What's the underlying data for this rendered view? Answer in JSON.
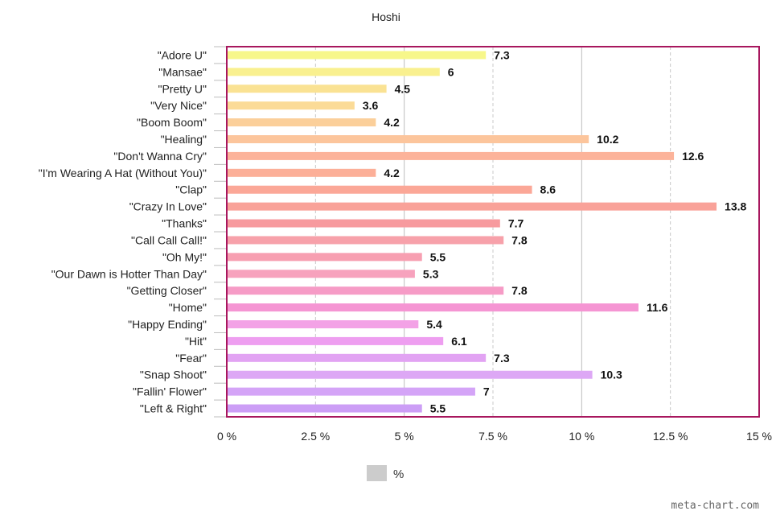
{
  "chart_data": {
    "type": "bar",
    "orientation": "horizontal",
    "title": "Hoshi",
    "categories": [
      "\"Adore U\"",
      "\"Mansae\"",
      "\"Pretty U\"",
      "\"Very Nice\"",
      "\"Boom Boom\"",
      "\"Healing\"",
      "\"Don't Wanna Cry\"",
      "\"I'm Wearing A Hat (Without You)\"",
      "\"Clap\"",
      "\"Crazy In Love\"",
      "\"Thanks\"",
      "\"Call Call Call!\"",
      "\"Oh My!\"",
      "\"Our Dawn is Hotter Than Day\"",
      "\"Getting Closer\"",
      "\"Home\"",
      "\"Happy Ending\"",
      "\"Hit\"",
      "\"Fear\"",
      "\"Snap Shoot\"",
      "\"Fallin' Flower\"",
      "\"Left & Right\""
    ],
    "series": [
      {
        "name": "%",
        "values": [
          7.3,
          6,
          4.5,
          3.6,
          4.2,
          10.2,
          12.6,
          4.2,
          8.6,
          13.8,
          7.7,
          7.8,
          5.5,
          5.3,
          7.8,
          11.6,
          5.4,
          6.1,
          7.3,
          10.3,
          7,
          5.5
        ],
        "value_labels": [
          "7.3",
          "6",
          "4.5",
          "3.6",
          "4.2",
          "10.2",
          "12.6",
          "4.2",
          "8.6",
          "13.8",
          "7.7",
          "7.8",
          "5.5",
          "5.3",
          "7.8",
          "11.6",
          "5.4",
          "6.1",
          "7.3",
          "10.3",
          "7",
          "5.5"
        ]
      }
    ],
    "bar_colors": [
      "#f7f78a",
      "#f9f08f",
      "#fae293",
      "#fbdb97",
      "#fbcf9a",
      "#fcc59c",
      "#fcb39a",
      "#fcaf98",
      "#fba797",
      "#f9a299",
      "#f79a9e",
      "#f7a1aa",
      "#f79fb1",
      "#f7a2bd",
      "#f69bc6",
      "#f595d3",
      "#f3a2e6",
      "#ee9ef0",
      "#e2a3f3",
      "#dda8f5",
      "#d4a4f7",
      "#cc9ef6"
    ],
    "xaxis": {
      "ticks": [
        0,
        2.5,
        5,
        7.5,
        10,
        12.5,
        15
      ],
      "tick_labels": [
        "0 %",
        "2.5 %",
        "5 %",
        "7.5 %",
        "10 %",
        "12.5 %",
        "15 %"
      ],
      "range": [
        0,
        15
      ]
    },
    "grid": true,
    "plot_border_color": "#a8175e",
    "legend": {
      "label": "%",
      "swatch_color": "#cccccc",
      "position": "bottom-center"
    },
    "xlabel": "",
    "ylabel": ""
  },
  "watermark": "meta-chart.com"
}
